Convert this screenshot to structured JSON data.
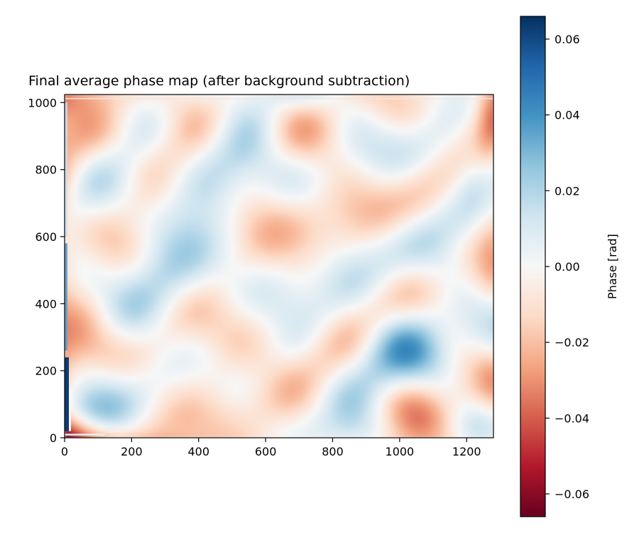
{
  "chart_data": {
    "type": "heatmap",
    "title": "Final average phase map (after background subtraction)",
    "xlabel": "",
    "ylabel": "",
    "colorbar_label": "Phase [rad]",
    "colormap": "RdBu",
    "xlim": [
      0,
      1280
    ],
    "ylim": [
      0,
      1024
    ],
    "xticks": [
      0,
      200,
      400,
      600,
      800,
      1000,
      1200
    ],
    "xtick_labels": [
      "0",
      "200",
      "400",
      "600",
      "800",
      "1000",
      "1200"
    ],
    "yticks": [
      0,
      200,
      400,
      600,
      800,
      1000
    ],
    "ytick_labels": [
      "0",
      "200",
      "400",
      "600",
      "800",
      "1000"
    ],
    "clim": [
      -0.066,
      0.066
    ],
    "cbar_ticks": [
      0.06,
      0.04,
      0.02,
      0.0,
      -0.02,
      -0.04,
      -0.06
    ],
    "cbar_tick_labels": [
      "0.06",
      "0.04",
      "0.02",
      "0.00",
      "−0.02",
      "−0.04",
      "−0.06"
    ],
    "colors": {
      "min": "#67001f",
      "max": "#053061",
      "zero": "#f7f7f7"
    }
  }
}
